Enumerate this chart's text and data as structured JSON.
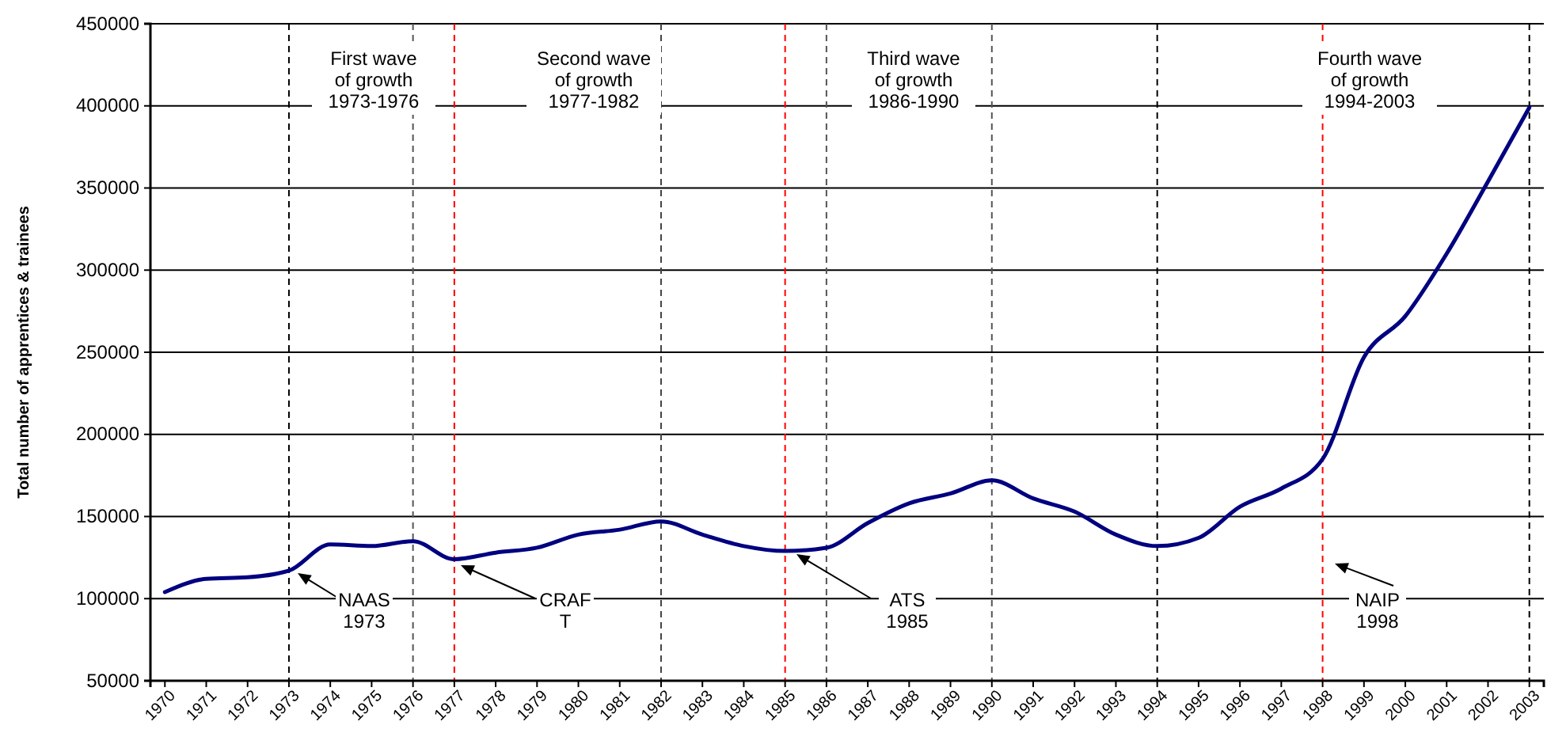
{
  "chart_data": {
    "type": "line",
    "ylabel": "Total number of apprentices & trainees",
    "categories": [
      "1970",
      "1971",
      "1972",
      "1973",
      "1974",
      "1975",
      "1976",
      "1977",
      "1978",
      "1979",
      "1980",
      "1981",
      "1982",
      "1983",
      "1984",
      "1985",
      "1986",
      "1987",
      "1988",
      "1989",
      "1990",
      "1991",
      "1992",
      "1993",
      "1994",
      "1995",
      "1996",
      "1997",
      "1998",
      "1999",
      "2000",
      "2001",
      "2002",
      "2003"
    ],
    "series": [
      {
        "color": "#000080",
        "values": [
          104000,
          112000,
          113000,
          117000,
          133000,
          132000,
          135000,
          124000,
          128000,
          131000,
          139000,
          142000,
          147000,
          139000,
          132000,
          129000,
          131000,
          146000,
          158000,
          164000,
          172000,
          161000,
          153000,
          139000,
          132000,
          137000,
          156000,
          167000,
          185000,
          247000,
          272000,
          310000,
          354000,
          399000
        ]
      }
    ],
    "ylim": [
      50000,
      450000
    ],
    "yticks": [
      50000,
      100000,
      150000,
      200000,
      250000,
      300000,
      350000,
      400000,
      450000
    ],
    "grid": "y",
    "marker": "none",
    "line_style": "solid",
    "ref_lines": [
      {
        "axis": "x",
        "value": "1973",
        "color": "#000000",
        "line_style": "dashed"
      },
      {
        "axis": "x",
        "value": "1976",
        "color": "#555555",
        "line_style": "dashed"
      },
      {
        "axis": "x",
        "value": "1977",
        "color": "#ff0000",
        "line_style": "dashed"
      },
      {
        "axis": "x",
        "value": "1982",
        "color": "#444444",
        "line_style": "dashed"
      },
      {
        "axis": "x",
        "value": "1985",
        "color": "#ff0000",
        "line_style": "dashed"
      },
      {
        "axis": "x",
        "value": "1986",
        "color": "#555555",
        "line_style": "dashed"
      },
      {
        "axis": "x",
        "value": "1990",
        "color": "#555555",
        "line_style": "dashed"
      },
      {
        "axis": "x",
        "value": "1994",
        "color": "#000000",
        "line_style": "dashed"
      },
      {
        "axis": "x",
        "value": "1998",
        "color": "#ff0000",
        "line_style": "dashed"
      },
      {
        "axis": "x",
        "value": "2003",
        "color": "#000000",
        "line_style": "dashed"
      }
    ],
    "annotations": [
      "First wave\nof growth\n1973-1976",
      "Second wave\nof growth\n1977-1982",
      "Third wave\nof growth\n1986-1990",
      "Fourth wave\nof growth\n1994-2003",
      "NAAS\n1973",
      "CRAF\nT",
      "ATS\n1985",
      "NAIP\n1998"
    ]
  }
}
